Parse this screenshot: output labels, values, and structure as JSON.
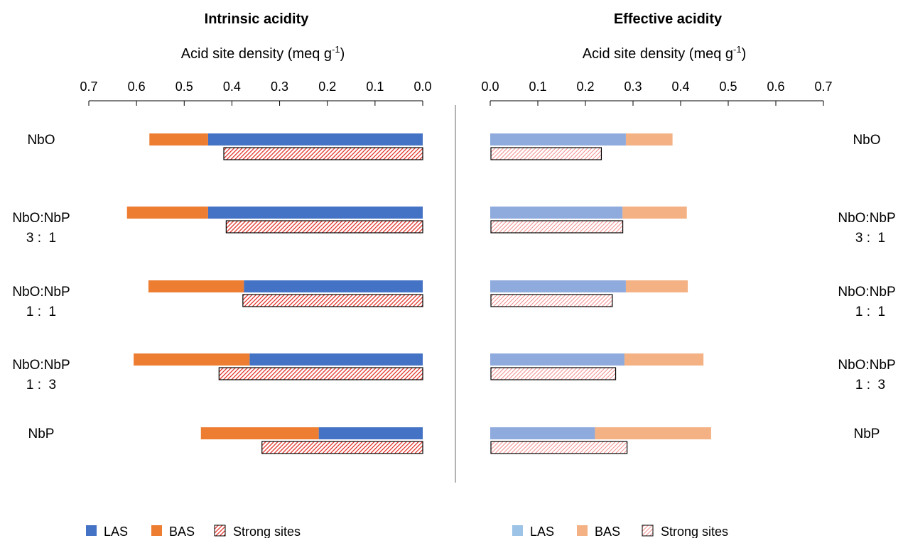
{
  "chart_data": [
    {
      "type": "bar",
      "title": "Intrinsic acidity",
      "axis_label": {
        "base": "Acid site density (meq g",
        "sup": "-1",
        "close": ")"
      },
      "xlim": [
        0.7,
        0.0
      ],
      "ticks": [
        "0.7",
        "0.6",
        "0.5",
        "0.4",
        "0.3",
        "0.2",
        "0.1",
        "0.0"
      ],
      "tick_values": [
        0.7,
        0.6,
        0.5,
        0.4,
        0.3,
        0.2,
        0.1,
        0.0
      ],
      "orientation": "horizontal",
      "bar_direction": "right-to-left",
      "stacked_pair": [
        "LAS",
        "BAS"
      ],
      "categories": [
        {
          "line1": "NbO",
          "line2": ""
        },
        {
          "line1": "NbO:NbP",
          "line2": "3 :  1"
        },
        {
          "line1": "NbO:NbP",
          "line2": "1 :  1"
        },
        {
          "line1": "NbO:NbP",
          "line2": "1 :  3"
        },
        {
          "line1": "NbP",
          "line2": ""
        }
      ],
      "series": [
        {
          "name": "LAS",
          "color": "#4472C4",
          "values": [
            0.45,
            0.45,
            0.375,
            0.363,
            0.218
          ]
        },
        {
          "name": "BAS",
          "color": "#ED7D31",
          "values": [
            0.123,
            0.17,
            0.2,
            0.243,
            0.247
          ]
        },
        {
          "name": "Strong sites",
          "color": "#FF0000",
          "pattern": "hatched",
          "values": [
            0.417,
            0.412,
            0.377,
            0.427,
            0.337
          ]
        }
      ],
      "legend": {
        "position": "bottom",
        "items": [
          "LAS",
          "BAS",
          "Strong sites"
        ]
      }
    },
    {
      "type": "bar",
      "title": "Effective acidity",
      "axis_label": {
        "base": "Acid site density (meq g",
        "sup": "-1",
        "close": ")"
      },
      "xlim": [
        0.0,
        0.7
      ],
      "ticks": [
        "0.0",
        "0.1",
        "0.2",
        "0.3",
        "0.4",
        "0.5",
        "0.6",
        "0.7"
      ],
      "tick_values": [
        0.0,
        0.1,
        0.2,
        0.3,
        0.4,
        0.5,
        0.6,
        0.7
      ],
      "orientation": "horizontal",
      "bar_direction": "left-to-right",
      "stacked_pair": [
        "LAS",
        "BAS"
      ],
      "categories": [
        {
          "line1": "NbO",
          "line2": ""
        },
        {
          "line1": "NbO:NbP",
          "line2": "3 :  1"
        },
        {
          "line1": "NbO:NbP",
          "line2": "1 :  1"
        },
        {
          "line1": "NbO:NbP",
          "line2": "1 :  3"
        },
        {
          "line1": "NbP",
          "line2": ""
        }
      ],
      "series": [
        {
          "name": "LAS",
          "color": "#8FAADC",
          "values": [
            0.285,
            0.278,
            0.285,
            0.282,
            0.22
          ]
        },
        {
          "name": "BAS",
          "color": "#F4B183",
          "values": [
            0.098,
            0.135,
            0.13,
            0.166,
            0.244
          ]
        },
        {
          "name": "Strong sites",
          "color": "#FF8080",
          "pattern": "hatched-light",
          "values": [
            0.232,
            0.277,
            0.255,
            0.262,
            0.286
          ]
        }
      ],
      "legend": {
        "position": "bottom",
        "items": [
          "LAS",
          "BAS",
          "Strong sites"
        ]
      },
      "legend_colors": {
        "LAS": "#9DC3E6",
        "BAS": "#F4B183",
        "Strong sites": "#FF8080"
      }
    }
  ]
}
